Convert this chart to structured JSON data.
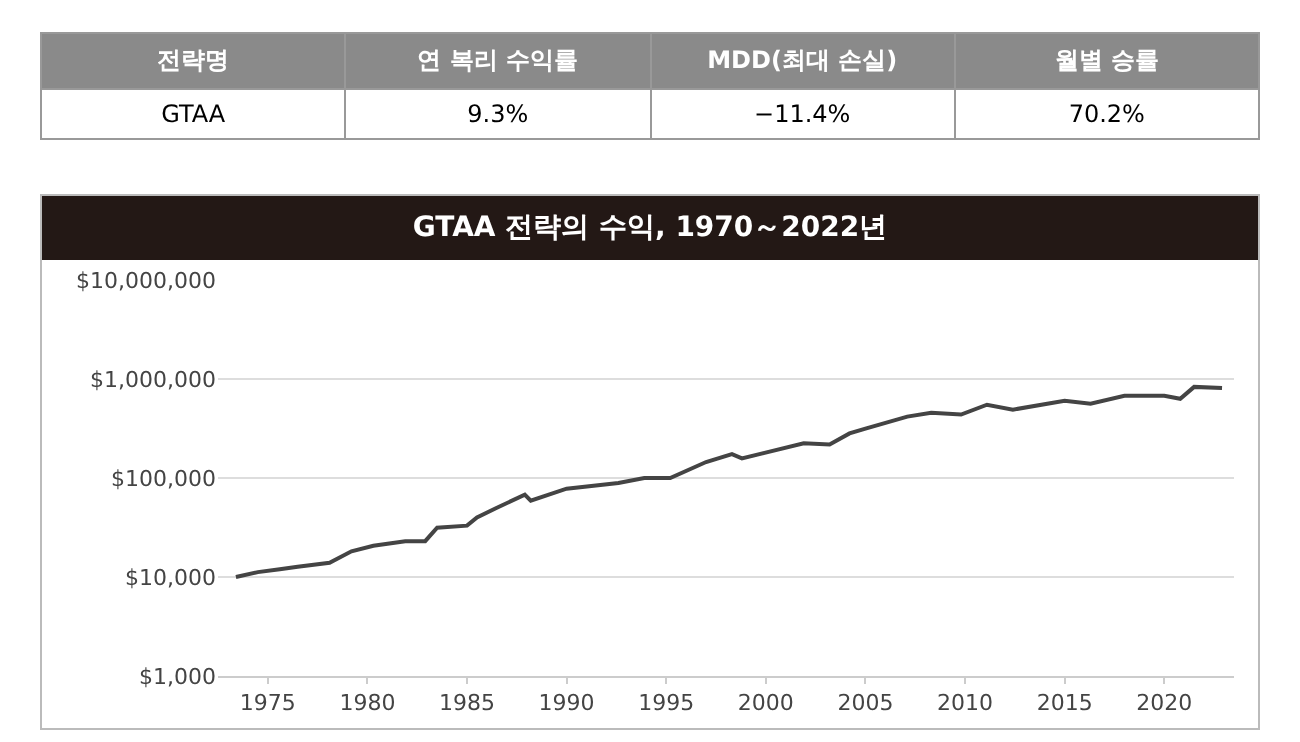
{
  "chart_data": [
    {
      "type": "other",
      "annotations": [
        "전략명",
        "연 복리 수익률",
        "MDD(최대 손실)",
        "월별 승률",
        "GTAA",
        "9.3%",
        "−11.4%",
        "70.2%"
      ]
    },
    {
      "type": "line",
      "title": "GTAA 전략의 수익, 1970～2022년",
      "x": [
        1973.4,
        1974.5,
        1975.6,
        1976.5,
        1978.1,
        1979.2,
        1980.3,
        1981.9,
        1982.9,
        1983.5,
        1985.0,
        1985.5,
        1986.5,
        1987.9,
        1988.2,
        1990.0,
        1992.6,
        1993.9,
        1995.2,
        1997.0,
        1998.3,
        1998.8,
        2001.9,
        2003.2,
        2004.2,
        2005.0,
        2007.1,
        2008.3,
        2009.8,
        2011.1,
        2012.4,
        2015.0,
        2016.3,
        2018.0,
        2020.0,
        2020.8,
        2021.5,
        2022.9
      ],
      "series": [
        {
          "color": "#444444",
          "values": [
            10000,
            11200,
            12000,
            12700,
            13900,
            18200,
            20700,
            23000,
            23000,
            31500,
            33000,
            40000,
            50000,
            68000,
            59000,
            78000,
            89000,
            100000,
            100000,
            145000,
            174000,
            158000,
            224000,
            218000,
            282000,
            316000,
            417000,
            457000,
            437000,
            550000,
            490000,
            603000,
            562000,
            676000,
            676000,
            631000,
            832000,
            813000
          ]
        }
      ],
      "log": "y",
      "grid": "y",
      "marker": "none",
      "line_style": "solid",
      "xlim": [
        1972.5,
        2023.5
      ],
      "xticks": [
        1975,
        1980,
        1985,
        1990,
        1995,
        2000,
        2005,
        2010,
        2015,
        2020
      ],
      "ylim": [
        1000,
        10000000
      ],
      "yticks": [
        {
          "value": 1000,
          "label": "$1,000"
        },
        {
          "value": 10000,
          "label": "$10,000"
        },
        {
          "value": 100000,
          "label": "$100,000"
        },
        {
          "value": 1000000,
          "label": "$1,000,000"
        },
        {
          "value": 10000000,
          "label": "$10,000,000"
        }
      ]
    }
  ]
}
